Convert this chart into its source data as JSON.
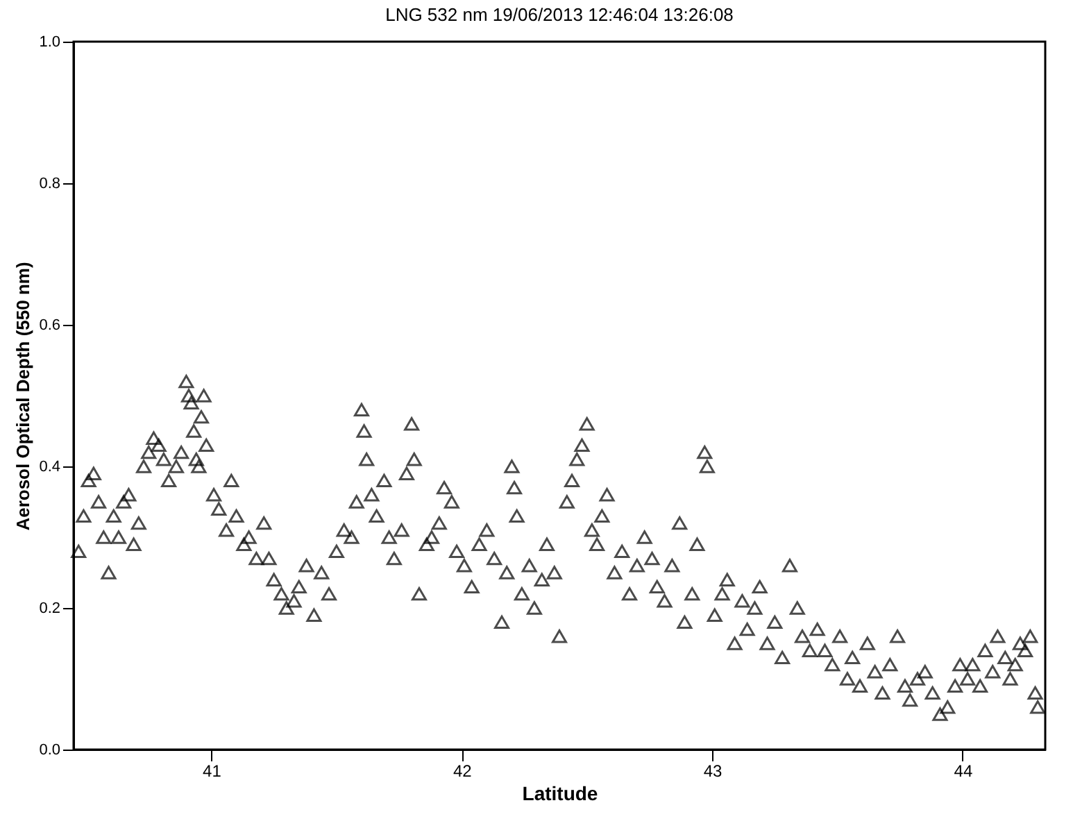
{
  "chart_data": {
    "type": "scatter",
    "title": "LNG 532 nm 19/06/2013 12:46:04 13:26:08",
    "xlabel": "Latitude",
    "ylabel": "Aerosol Optical Depth (550 nm)",
    "x": [
      40.47,
      40.49,
      40.51,
      40.53,
      40.55,
      40.57,
      40.59,
      40.61,
      40.63,
      40.65,
      40.67,
      40.69,
      40.71,
      40.73,
      40.75,
      40.77,
      40.79,
      40.81,
      40.83,
      40.86,
      40.88,
      40.9,
      40.91,
      40.92,
      40.93,
      40.94,
      40.95,
      40.96,
      40.97,
      40.98,
      41.01,
      41.03,
      41.06,
      41.08,
      41.1,
      41.13,
      41.15,
      41.18,
      41.21,
      41.23,
      41.25,
      41.28,
      41.3,
      41.33,
      41.35,
      41.38,
      41.41,
      41.44,
      41.47,
      41.5,
      41.53,
      41.56,
      41.58,
      41.6,
      41.61,
      41.62,
      41.64,
      41.66,
      41.69,
      41.71,
      41.73,
      41.76,
      41.78,
      41.8,
      41.81,
      41.83,
      41.86,
      41.88,
      41.91,
      41.93,
      41.96,
      41.98,
      42.01,
      42.04,
      42.07,
      42.1,
      42.13,
      42.16,
      42.18,
      42.2,
      42.21,
      42.22,
      42.24,
      42.27,
      42.29,
      42.32,
      42.34,
      42.37,
      42.39,
      42.42,
      42.44,
      42.46,
      42.48,
      42.5,
      42.52,
      42.54,
      42.56,
      42.58,
      42.61,
      42.64,
      42.67,
      42.7,
      42.73,
      42.76,
      42.78,
      42.81,
      42.84,
      42.87,
      42.89,
      42.92,
      42.94,
      42.97,
      42.98,
      43.01,
      43.04,
      43.06,
      43.09,
      43.12,
      43.14,
      43.17,
      43.19,
      43.22,
      43.25,
      43.28,
      43.31,
      43.34,
      43.36,
      43.39,
      43.42,
      43.45,
      43.48,
      43.51,
      43.54,
      43.56,
      43.59,
      43.62,
      43.65,
      43.68,
      43.71,
      43.74,
      43.77,
      43.79,
      43.82,
      43.85,
      43.88,
      43.91,
      43.94,
      43.97,
      43.99,
      44.02,
      44.04,
      44.07,
      44.09,
      44.12,
      44.14,
      44.17,
      44.19,
      44.21,
      44.23,
      44.25,
      44.27,
      44.29,
      44.3
    ],
    "values": [
      0.28,
      0.33,
      0.38,
      0.39,
      0.35,
      0.3,
      0.25,
      0.33,
      0.3,
      0.35,
      0.36,
      0.29,
      0.32,
      0.4,
      0.42,
      0.44,
      0.43,
      0.41,
      0.38,
      0.4,
      0.42,
      0.52,
      0.5,
      0.49,
      0.45,
      0.41,
      0.4,
      0.47,
      0.5,
      0.43,
      0.36,
      0.34,
      0.31,
      0.38,
      0.33,
      0.29,
      0.3,
      0.27,
      0.32,
      0.27,
      0.24,
      0.22,
      0.2,
      0.21,
      0.23,
      0.26,
      0.19,
      0.25,
      0.22,
      0.28,
      0.31,
      0.3,
      0.35,
      0.48,
      0.45,
      0.41,
      0.36,
      0.33,
      0.38,
      0.3,
      0.27,
      0.31,
      0.39,
      0.46,
      0.41,
      0.22,
      0.29,
      0.3,
      0.32,
      0.37,
      0.35,
      0.28,
      0.26,
      0.23,
      0.29,
      0.31,
      0.27,
      0.18,
      0.25,
      0.4,
      0.37,
      0.33,
      0.22,
      0.26,
      0.2,
      0.24,
      0.29,
      0.25,
      0.16,
      0.35,
      0.38,
      0.41,
      0.43,
      0.46,
      0.31,
      0.29,
      0.33,
      0.36,
      0.25,
      0.28,
      0.22,
      0.26,
      0.3,
      0.27,
      0.23,
      0.21,
      0.26,
      0.32,
      0.18,
      0.22,
      0.29,
      0.42,
      0.4,
      0.19,
      0.22,
      0.24,
      0.15,
      0.21,
      0.17,
      0.2,
      0.23,
      0.15,
      0.18,
      0.13,
      0.26,
      0.2,
      0.16,
      0.14,
      0.17,
      0.14,
      0.12,
      0.16,
      0.1,
      0.13,
      0.09,
      0.15,
      0.11,
      0.08,
      0.12,
      0.16,
      0.09,
      0.07,
      0.1,
      0.11,
      0.08,
      0.05,
      0.06,
      0.09,
      0.12,
      0.1,
      0.12,
      0.09,
      0.14,
      0.11,
      0.16,
      0.13,
      0.1,
      0.12,
      0.15,
      0.14,
      0.16,
      0.08,
      0.06
    ],
    "color": "#000000",
    "marker": "triangle",
    "xlim": [
      40.45,
      44.33
    ],
    "xticks": [
      41,
      42,
      43,
      44
    ],
    "ylim": [
      0,
      1
    ],
    "yticks": [
      {
        "value": 0,
        "label": "0.0"
      },
      0.2,
      0.4,
      0.6,
      0.8,
      {
        "value": 1,
        "label": "1.0"
      }
    ],
    "grid": false
  }
}
